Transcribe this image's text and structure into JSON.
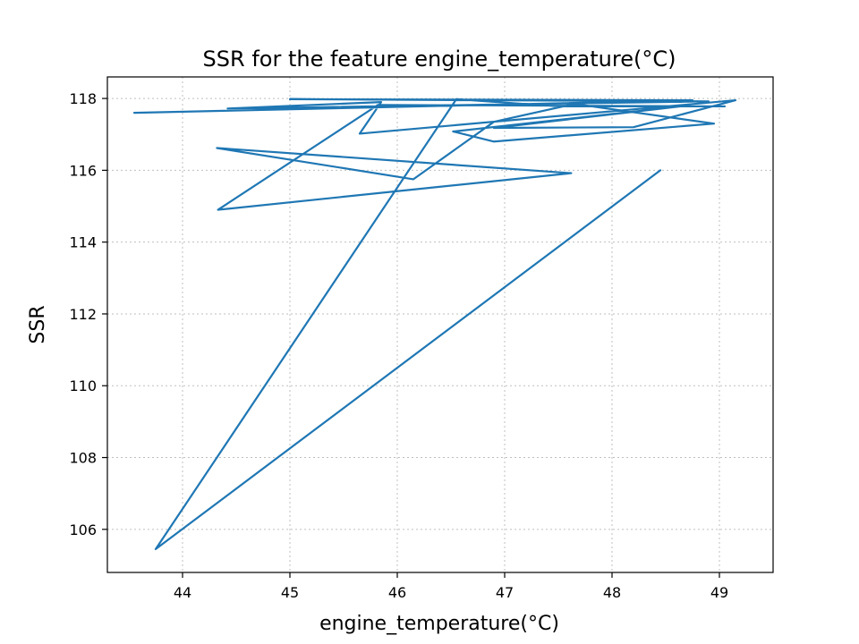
{
  "chart_data": {
    "type": "line",
    "title": "SSR for the feature engine_temperature(°C)",
    "xlabel": "engine_temperature(°C)",
    "ylabel": "SSR",
    "xlim": [
      43.3,
      49.5
    ],
    "ylim": [
      104.8,
      118.6
    ],
    "xticks": [
      44,
      45,
      46,
      47,
      48,
      49
    ],
    "yticks": [
      106,
      108,
      110,
      112,
      114,
      116,
      118
    ],
    "grid": true,
    "series": [
      {
        "color": "#1f77b4",
        "points": [
          [
            43.55,
            117.6
          ],
          [
            48.75,
            117.95
          ],
          [
            45.0,
            117.98
          ],
          [
            48.9,
            117.92
          ],
          [
            44.42,
            117.72
          ],
          [
            45.85,
            117.9
          ],
          [
            45.65,
            117.02
          ],
          [
            49.15,
            117.95
          ],
          [
            48.2,
            117.2
          ],
          [
            46.9,
            117.18
          ],
          [
            48.7,
            117.8
          ],
          [
            46.52,
            117.08
          ],
          [
            46.9,
            116.8
          ],
          [
            48.95,
            117.3
          ],
          [
            47.65,
            117.85
          ],
          [
            46.9,
            117.35
          ],
          [
            46.15,
            115.75
          ],
          [
            44.32,
            116.62
          ],
          [
            47.62,
            115.92
          ],
          [
            44.33,
            114.9
          ],
          [
            45.82,
            117.82
          ],
          [
            49.05,
            117.78
          ],
          [
            47.5,
            117.78
          ],
          [
            46.55,
            117.98
          ],
          [
            43.75,
            105.45
          ],
          [
            48.45,
            116.0
          ]
        ]
      }
    ]
  }
}
